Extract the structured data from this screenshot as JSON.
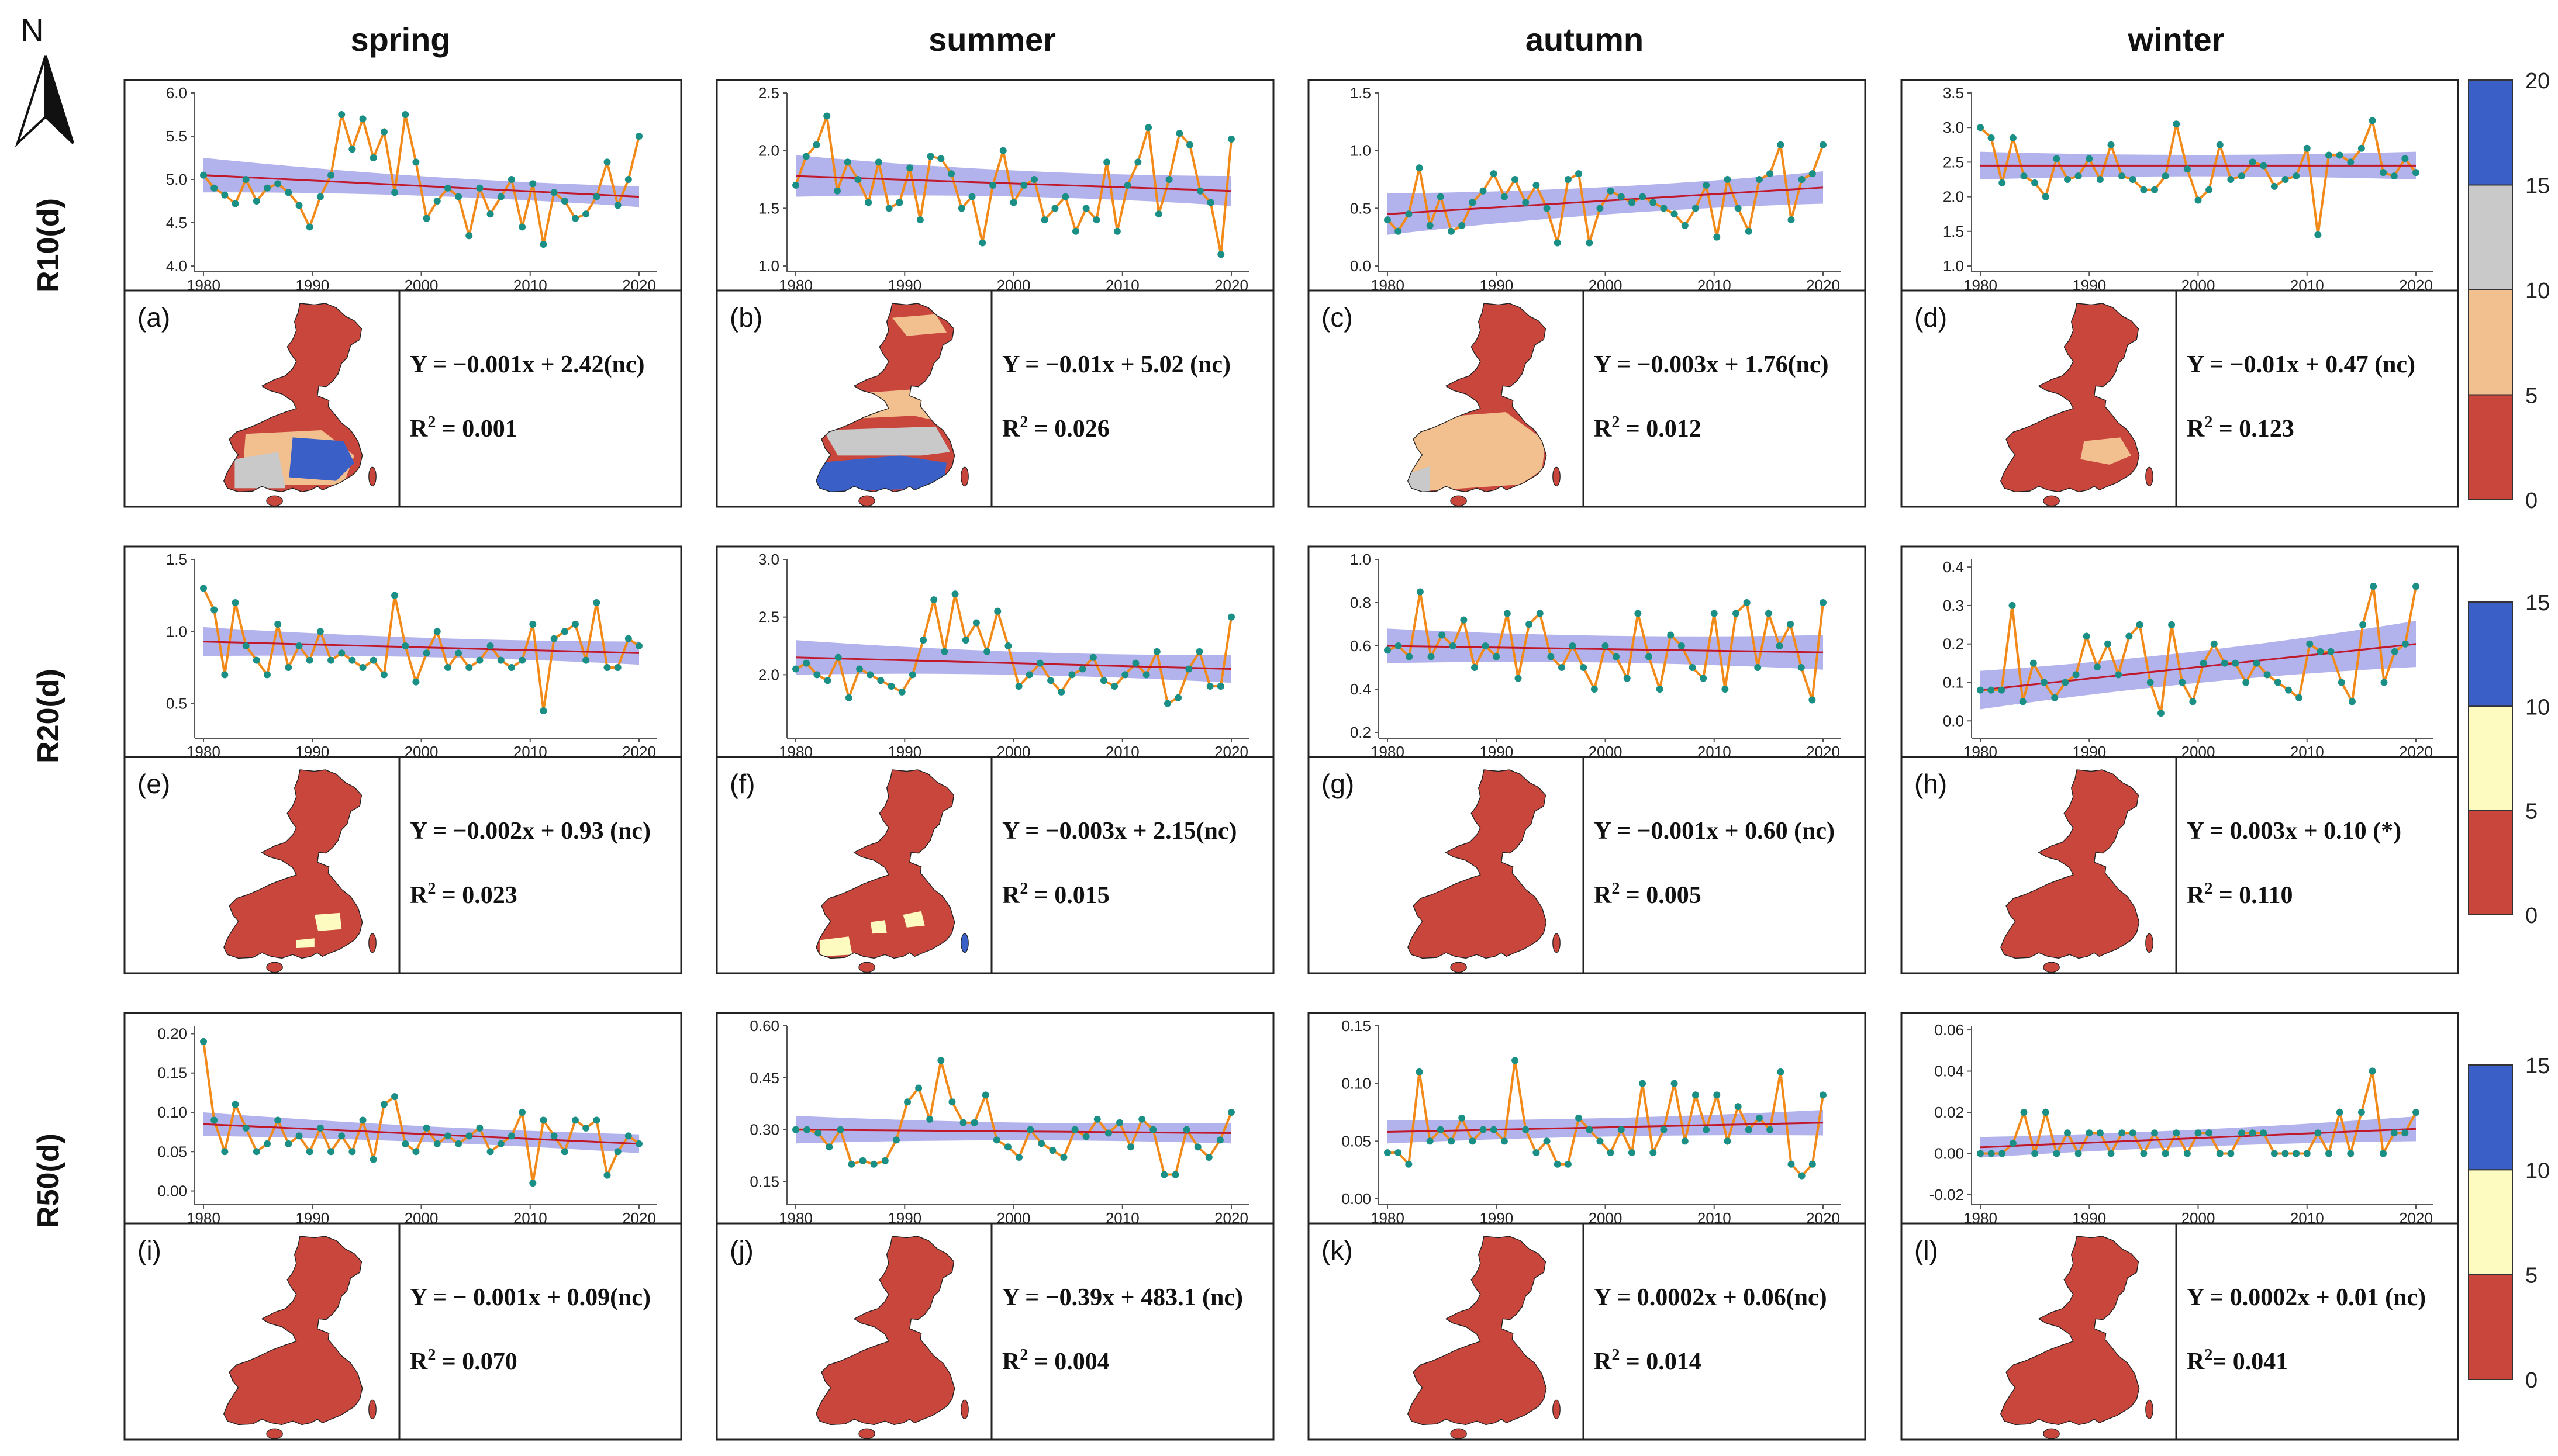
{
  "figure": {
    "north_label": "N",
    "columns": [
      "spring",
      "summer",
      "autumn",
      "winter"
    ],
    "rows": [
      "R10(d)",
      "R20(d)",
      "R50(d)"
    ]
  },
  "colors": {
    "series_line": "#f28a1a",
    "series_point": "#1a8f86",
    "trend_line": "#c0192c",
    "confidence_band": "#9898e6",
    "map_red": "#c9463d",
    "map_peach": "#f2c08f",
    "map_grey": "#c9c9c9",
    "map_blue": "#3a60c8",
    "map_yellow": "#fefbc0"
  },
  "colorbars": [
    {
      "row": "R10(d)",
      "ticks": [
        "20",
        "15",
        "10",
        "5",
        "0"
      ],
      "colors": [
        "#3a60c8",
        "#c9c9c9",
        "#f2c08f",
        "#c9463d"
      ]
    },
    {
      "row": "R20(d)",
      "ticks": [
        "15",
        "10",
        "5",
        "0"
      ],
      "colors": [
        "#3a60c8",
        "#fefbc0",
        "#c9463d"
      ]
    },
    {
      "row": "R50(d)",
      "ticks": [
        "15",
        "10",
        "5",
        "0"
      ],
      "colors": [
        "#3a60c8",
        "#fefbc0",
        "#c9463d"
      ]
    }
  ],
  "chart_data": [
    {
      "id": "a",
      "label": "(a)",
      "index": "R10(d)",
      "season": "spring",
      "type": "line",
      "ylim": [
        4.0,
        6.0
      ],
      "yticks": [
        "4.0",
        "4.5",
        "5.0",
        "5.5",
        "6.0"
      ],
      "xticks": [
        "1980",
        "1990",
        "2000",
        "2010",
        "2020"
      ],
      "x_start": 1980,
      "values": [
        5.05,
        4.9,
        4.82,
        4.72,
        5.0,
        4.75,
        4.9,
        4.95,
        4.85,
        4.7,
        4.45,
        4.8,
        5.05,
        5.75,
        5.35,
        5.7,
        5.25,
        5.55,
        4.85,
        5.75,
        5.2,
        4.55,
        4.75,
        4.9,
        4.8,
        4.35,
        4.9,
        4.6,
        4.8,
        5.0,
        4.45,
        4.95,
        4.25,
        4.85,
        4.75,
        4.55,
        4.6,
        4.8,
        5.2,
        4.7,
        5.0,
        5.5
      ],
      "trend": [
        5.05,
        4.8
      ],
      "band": [
        0.2,
        0.12
      ],
      "equation": "Y = −0.001x + 2.42(nc)",
      "r2_label": "R",
      "r2_value": " = 0.001"
    },
    {
      "id": "b",
      "label": "(b)",
      "index": "R10(d)",
      "season": "summer",
      "type": "line",
      "ylim": [
        1.0,
        2.5
      ],
      "yticks": [
        "1.0",
        "1.5",
        "2.0",
        "2.5"
      ],
      "xticks": [
        "1980",
        "1990",
        "2000",
        "2010",
        "2020"
      ],
      "x_start": 1980,
      "values": [
        1.7,
        1.95,
        2.05,
        2.3,
        1.65,
        1.9,
        1.75,
        1.55,
        1.9,
        1.5,
        1.55,
        1.85,
        1.4,
        1.95,
        1.93,
        1.8,
        1.5,
        1.6,
        1.2,
        1.7,
        2.0,
        1.55,
        1.7,
        1.75,
        1.4,
        1.5,
        1.6,
        1.3,
        1.5,
        1.4,
        1.9,
        1.3,
        1.7,
        1.9,
        2.2,
        1.45,
        1.75,
        2.15,
        2.05,
        1.65,
        1.55,
        1.1,
        2.1
      ],
      "trend": [
        1.78,
        1.65
      ],
      "band": [
        0.18,
        0.13
      ],
      "equation": "Y = −0.01x + 5.02 (nc)",
      "r2_label": "R",
      "r2_value": " = 0.026"
    },
    {
      "id": "c",
      "label": "(c)",
      "index": "R10(d)",
      "season": "autumn",
      "type": "line",
      "ylim": [
        0.0,
        1.5
      ],
      "yticks": [
        "0.0",
        "0.5",
        "1.0",
        "1.5"
      ],
      "xticks": [
        "1980",
        "1990",
        "2000",
        "2010",
        "2020"
      ],
      "x_start": 1980,
      "values": [
        0.4,
        0.3,
        0.45,
        0.85,
        0.35,
        0.6,
        0.3,
        0.35,
        0.55,
        0.65,
        0.8,
        0.6,
        0.75,
        0.55,
        0.7,
        0.5,
        0.2,
        0.75,
        0.8,
        0.2,
        0.5,
        0.65,
        0.6,
        0.55,
        0.6,
        0.55,
        0.5,
        0.45,
        0.35,
        0.5,
        0.7,
        0.25,
        0.75,
        0.5,
        0.3,
        0.75,
        0.8,
        1.05,
        0.4,
        0.75,
        0.8,
        1.05
      ],
      "trend": [
        0.45,
        0.68
      ],
      "band": [
        0.18,
        0.14
      ],
      "equation": "Y = −0.003x + 1.76(nc)",
      "r2_label": "R",
      "r2_value": " = 0.012"
    },
    {
      "id": "d",
      "label": "(d)",
      "index": "R10(d)",
      "season": "winter",
      "type": "line",
      "ylim": [
        1.0,
        3.5
      ],
      "yticks": [
        "1.0",
        "1.5",
        "2.0",
        "2.5",
        "3.0",
        "3.5"
      ],
      "xticks": [
        "1980",
        "1990",
        "2000",
        "2010",
        "2020"
      ],
      "x_start": 1980,
      "values": [
        3.0,
        2.85,
        2.2,
        2.85,
        2.3,
        2.2,
        2.0,
        2.55,
        2.25,
        2.3,
        2.55,
        2.25,
        2.75,
        2.3,
        2.25,
        2.1,
        2.1,
        2.3,
        3.05,
        2.4,
        1.95,
        2.1,
        2.75,
        2.25,
        2.3,
        2.5,
        2.45,
        2.15,
        2.25,
        2.3,
        2.7,
        1.45,
        2.6,
        2.6,
        2.5,
        2.7,
        3.1,
        2.35,
        2.3,
        2.55,
        2.35
      ],
      "trend": [
        2.45,
        2.45
      ],
      "band": [
        0.2,
        0.2
      ],
      "equation": "Y = −0.01x + 0.47 (nc)",
      "r2_label": "R",
      "r2_value": " = 0.123"
    },
    {
      "id": "e",
      "label": "(e)",
      "index": "R20(d)",
      "season": "spring",
      "type": "line",
      "ylim": [
        0.3,
        1.5
      ],
      "yticks": [
        "0.5",
        "1.0",
        "1.5"
      ],
      "xticks": [
        "1980",
        "1990",
        "2000",
        "2010",
        "2020"
      ],
      "x_start": 1980,
      "values": [
        1.3,
        1.15,
        0.7,
        1.2,
        0.9,
        0.8,
        0.7,
        1.05,
        0.75,
        0.9,
        0.8,
        1.0,
        0.8,
        0.85,
        0.8,
        0.75,
        0.8,
        0.7,
        1.25,
        0.9,
        0.65,
        0.85,
        1.0,
        0.75,
        0.85,
        0.75,
        0.8,
        0.9,
        0.8,
        0.75,
        0.8,
        1.05,
        0.45,
        0.95,
        1.0,
        1.05,
        0.8,
        1.2,
        0.75,
        0.75,
        0.95,
        0.9
      ],
      "trend": [
        0.93,
        0.85
      ],
      "band": [
        0.1,
        0.08
      ],
      "equation": "Y = −0.002x + 0.93 (nc)",
      "r2_label": "R",
      "r2_value": " = 0.023"
    },
    {
      "id": "f",
      "label": "(f)",
      "index": "R20(d)",
      "season": "summer",
      "type": "line",
      "ylim": [
        1.5,
        3.0
      ],
      "yticks": [
        "2.0",
        "2.5",
        "3.0"
      ],
      "xticks": [
        "1980",
        "1990",
        "2000",
        "2010",
        "2020"
      ],
      "x_start": 1980,
      "values": [
        2.05,
        2.1,
        2.0,
        1.95,
        2.15,
        1.8,
        2.05,
        2.0,
        1.95,
        1.9,
        1.85,
        2.0,
        2.3,
        2.65,
        2.2,
        2.7,
        2.3,
        2.45,
        2.2,
        2.55,
        2.25,
        1.9,
        2.0,
        2.1,
        1.95,
        1.85,
        2.0,
        2.05,
        2.15,
        1.95,
        1.9,
        2.0,
        2.1,
        2.0,
        2.2,
        1.75,
        1.8,
        2.05,
        2.2,
        1.9,
        1.9,
        2.5
      ],
      "trend": [
        2.15,
        2.05
      ],
      "band": [
        0.15,
        0.12
      ],
      "equation": "Y = −0.003x + 2.15(nc)",
      "r2_label": "R",
      "r2_value": " = 0.015"
    },
    {
      "id": "g",
      "label": "(g)",
      "index": "R20(d)",
      "season": "autumn",
      "type": "line",
      "ylim": [
        0.2,
        1.0
      ],
      "yticks": [
        "0.2",
        "0.4",
        "0.6",
        "0.8",
        "1.0"
      ],
      "xticks": [
        "1980",
        "1990",
        "2000",
        "2010",
        "2020"
      ],
      "x_start": 1980,
      "values": [
        0.58,
        0.6,
        0.55,
        0.85,
        0.55,
        0.65,
        0.6,
        0.72,
        0.5,
        0.6,
        0.55,
        0.75,
        0.45,
        0.7,
        0.75,
        0.55,
        0.5,
        0.6,
        0.5,
        0.4,
        0.6,
        0.55,
        0.45,
        0.75,
        0.55,
        0.4,
        0.65,
        0.6,
        0.5,
        0.45,
        0.75,
        0.4,
        0.75,
        0.8,
        0.5,
        0.75,
        0.6,
        0.7,
        0.5,
        0.35,
        0.8
      ],
      "trend": [
        0.6,
        0.57
      ],
      "band": [
        0.08,
        0.08
      ],
      "equation": "Y = −0.001x + 0.60 (nc)",
      "r2_label": "R",
      "r2_value": " = 0.005"
    },
    {
      "id": "h",
      "label": "(h)",
      "index": "R20(d)",
      "season": "winter",
      "type": "line",
      "ylim": [
        -0.03,
        0.42
      ],
      "yticks": [
        "0.0",
        "0.1",
        "0.2",
        "0.3",
        "0.4"
      ],
      "xticks": [
        "1980",
        "1990",
        "2000",
        "2010",
        "2020"
      ],
      "x_start": 1980,
      "values": [
        0.08,
        0.08,
        0.08,
        0.3,
        0.05,
        0.15,
        0.1,
        0.06,
        0.1,
        0.12,
        0.22,
        0.14,
        0.2,
        0.12,
        0.22,
        0.25,
        0.1,
        0.02,
        0.25,
        0.1,
        0.05,
        0.15,
        0.2,
        0.15,
        0.15,
        0.1,
        0.15,
        0.12,
        0.1,
        0.08,
        0.06,
        0.2,
        0.18,
        0.18,
        0.1,
        0.05,
        0.25,
        0.35,
        0.1,
        0.18,
        0.2,
        0.35
      ],
      "trend": [
        0.08,
        0.2
      ],
      "band": [
        0.05,
        0.06
      ],
      "equation": "Y = 0.003x + 0.10 (*)",
      "r2_label": "R",
      "r2_value": " = 0.110"
    },
    {
      "id": "i",
      "label": "(i)",
      "index": "R50(d)",
      "season": "spring",
      "type": "line",
      "ylim": [
        -0.01,
        0.21
      ],
      "yticks": [
        "0.00",
        "0.05",
        "0.10",
        "0.15",
        "0.20"
      ],
      "xticks": [
        "1980",
        "1990",
        "2000",
        "2010",
        "2020"
      ],
      "x_start": 1980,
      "values": [
        0.19,
        0.09,
        0.05,
        0.11,
        0.08,
        0.05,
        0.06,
        0.09,
        0.06,
        0.07,
        0.05,
        0.08,
        0.05,
        0.07,
        0.05,
        0.09,
        0.04,
        0.11,
        0.12,
        0.06,
        0.05,
        0.08,
        0.06,
        0.07,
        0.06,
        0.07,
        0.08,
        0.05,
        0.06,
        0.07,
        0.1,
        0.01,
        0.09,
        0.07,
        0.05,
        0.09,
        0.08,
        0.09,
        0.02,
        0.05,
        0.07,
        0.06
      ],
      "trend": [
        0.085,
        0.06
      ],
      "band": [
        0.015,
        0.012
      ],
      "equation": "Y = − 0.001x + 0.09(nc)",
      "r2_label": "R",
      "r2_value": " = 0.070"
    },
    {
      "id": "j",
      "label": "(j)",
      "index": "R50(d)",
      "season": "summer",
      "type": "line",
      "ylim": [
        0.1,
        0.6
      ],
      "yticks": [
        "0.15",
        "0.30",
        "0.45",
        "0.60"
      ],
      "xticks": [
        "1980",
        "1990",
        "2000",
        "2010",
        "2020"
      ],
      "x_start": 1980,
      "values": [
        0.3,
        0.3,
        0.29,
        0.25,
        0.3,
        0.2,
        0.21,
        0.2,
        0.21,
        0.27,
        0.38,
        0.42,
        0.33,
        0.5,
        0.38,
        0.32,
        0.32,
        0.4,
        0.27,
        0.25,
        0.22,
        0.3,
        0.26,
        0.24,
        0.22,
        0.3,
        0.28,
        0.33,
        0.29,
        0.32,
        0.25,
        0.33,
        0.3,
        0.17,
        0.17,
        0.3,
        0.25,
        0.22,
        0.27,
        0.35
      ],
      "trend": [
        0.3,
        0.29
      ],
      "band": [
        0.04,
        0.03
      ],
      "equation": "Y = −0.39x + 483.1 (nc)",
      "r2_label": "R",
      "r2_value": " = 0.004"
    },
    {
      "id": "k",
      "label": "(k)",
      "index": "R50(d)",
      "season": "autumn",
      "type": "line",
      "ylim": [
        0.0,
        0.15
      ],
      "yticks": [
        "0.00",
        "0.05",
        "0.10",
        "0.15"
      ],
      "xticks": [
        "1980",
        "1990",
        "2000",
        "2010",
        "2020"
      ],
      "x_start": 1980,
      "values": [
        0.04,
        0.04,
        0.03,
        0.11,
        0.05,
        0.06,
        0.05,
        0.07,
        0.05,
        0.06,
        0.06,
        0.05,
        0.12,
        0.06,
        0.04,
        0.05,
        0.03,
        0.03,
        0.07,
        0.06,
        0.05,
        0.04,
        0.06,
        0.04,
        0.1,
        0.04,
        0.06,
        0.1,
        0.05,
        0.09,
        0.06,
        0.09,
        0.05,
        0.08,
        0.06,
        0.07,
        0.06,
        0.11,
        0.03,
        0.02,
        0.03,
        0.09
      ],
      "trend": [
        0.058,
        0.066
      ],
      "band": [
        0.01,
        0.011
      ],
      "equation": "Y = 0.0002x + 0.06(nc)",
      "r2_label": "R",
      "r2_value": " = 0.014"
    },
    {
      "id": "l",
      "label": "(l)",
      "index": "R50(d)",
      "season": "winter",
      "type": "line",
      "ylim": [
        -0.022,
        0.062
      ],
      "yticks": [
        "-0.02",
        "0.00",
        "0.02",
        "0.04",
        "0.06"
      ],
      "xticks": [
        "1980",
        "1990",
        "2000",
        "2010",
        "2020"
      ],
      "x_start": 1980,
      "values": [
        0.0,
        0.0,
        0.0,
        0.005,
        0.02,
        0.0,
        0.02,
        0.0,
        0.01,
        0.0,
        0.01,
        0.01,
        0.0,
        0.01,
        0.01,
        0.0,
        0.01,
        0.0,
        0.01,
        0.0,
        0.01,
        0.01,
        0.0,
        0.0,
        0.01,
        0.01,
        0.01,
        0.0,
        0.0,
        0.0,
        0.0,
        0.01,
        0.0,
        0.02,
        0.0,
        0.02,
        0.04,
        0.0,
        0.01,
        0.01,
        0.02
      ],
      "trend": [
        0.003,
        0.012
      ],
      "band": [
        0.005,
        0.006
      ],
      "equation": "Y = 0.0002x + 0.01 (nc)",
      "r2_label": "R",
      "r2_value": "= 0.041"
    }
  ]
}
